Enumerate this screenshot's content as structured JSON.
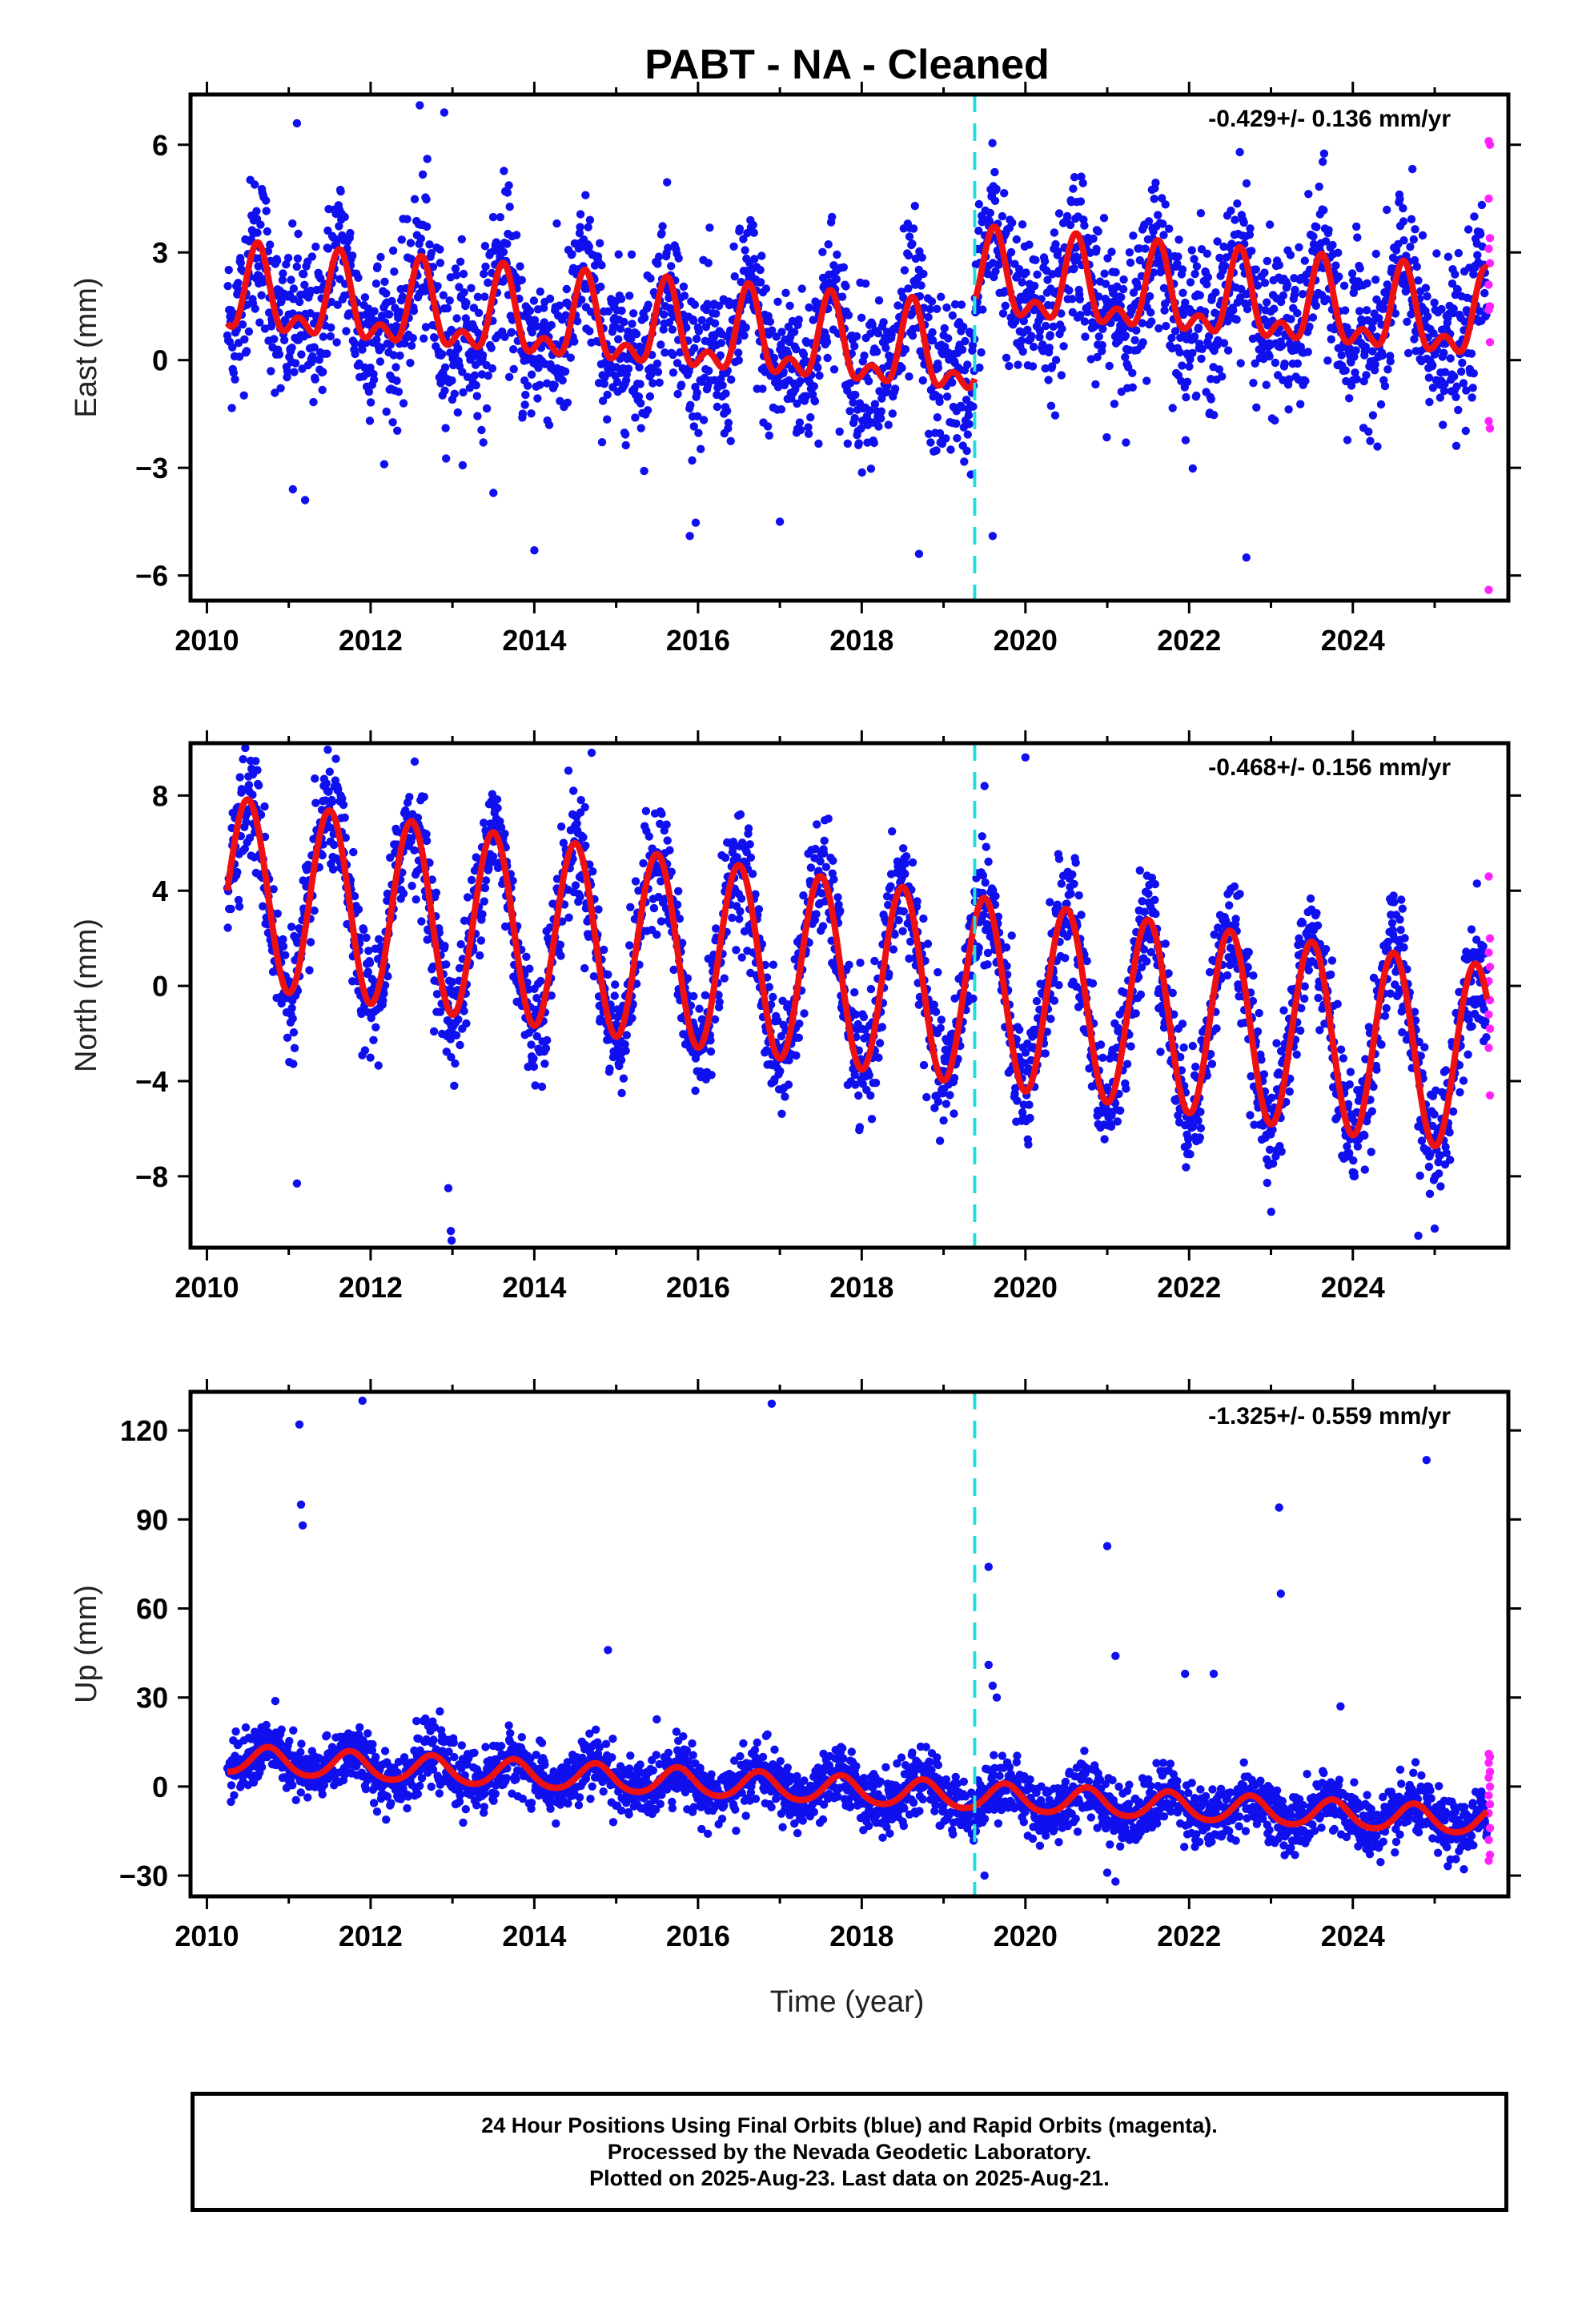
{
  "title": "PABT  - NA - Cleaned",
  "xlabel": "Time (year)",
  "colors": {
    "final_orbits": "#1010ee",
    "rapid_orbits": "#ff22ff",
    "model": "#ee1111",
    "equipment_change": "#22dddd"
  },
  "footer": {
    "line1": "24 Hour Positions Using Final Orbits (blue) and Rapid Orbits (magenta).",
    "line2": "Processed by the Nevada Geodetic Laboratory.",
    "line3": "Plotted on 2025-Aug-23. Last data on 2025-Aug-21."
  },
  "chart_data": [
    {
      "type": "scatter",
      "ylabel": "East (mm)",
      "velocity": "-0.429+/- 0.136 mm/yr",
      "xlim": [
        2009.8,
        2025.9
      ],
      "ylim": [
        -6.7,
        7.4
      ],
      "xticks": [
        2010,
        2012,
        2014,
        2016,
        2018,
        2020,
        2022,
        2024
      ],
      "yticks": [
        -6,
        -3,
        0,
        3,
        6
      ],
      "ytick_labels": [
        "−6",
        "−3",
        "0",
        "3",
        "6"
      ],
      "equipment_change_x": 2019.38,
      "data_start": 2010.25,
      "data_end": 2025.64,
      "model": {
        "series_name": "model",
        "offset": 1.75,
        "trend": -0.19,
        "step_at": 2019.38,
        "step": 2.15,
        "annual_amplitude": 1.0,
        "annual_peak": 0.62,
        "semiannual_amplitude": 0.6,
        "semiannual_peak": 0.62
      },
      "scatter_noise": 1.1,
      "rapid_values": [
        6.1,
        6.0,
        4.5,
        3.4,
        3.1,
        2.7,
        2.1,
        1.5,
        1.4,
        0.5,
        -1.7,
        -1.9,
        -6.4
      ],
      "outliers": [
        [
          2011.1,
          6.6
        ],
        [
          2012.6,
          7.1
        ],
        [
          2012.9,
          6.9
        ],
        [
          2011.05,
          -3.6
        ],
        [
          2011.2,
          -3.9
        ],
        [
          2013.5,
          -3.7
        ],
        [
          2014.0,
          -5.3
        ],
        [
          2015.9,
          -4.9
        ],
        [
          2017.0,
          -4.5
        ],
        [
          2018.7,
          -5.4
        ],
        [
          2019.6,
          -4.9
        ],
        [
          2022.7,
          -5.5
        ]
      ]
    },
    {
      "type": "scatter",
      "ylabel": "North (mm)",
      "velocity": "-0.468+/- 0.156 mm/yr",
      "xlim": [
        2009.8,
        2025.9
      ],
      "ylim": [
        -11.0,
        10.2
      ],
      "xticks": [
        2010,
        2012,
        2014,
        2016,
        2018,
        2020,
        2022,
        2024
      ],
      "yticks": [
        -8,
        -4,
        0,
        4,
        8
      ],
      "ytick_labels": [
        "−8",
        "−4",
        "0",
        "4",
        "8"
      ],
      "equipment_change_x": 2019.38,
      "data_start": 2010.25,
      "data_end": 2025.64,
      "model": {
        "series_name": "model",
        "offset": 4.0,
        "trend": -0.46,
        "step_at": 2019.38,
        "step": 0.0,
        "annual_amplitude": 3.95,
        "annual_peak": 0.5,
        "semiannual_amplitude": 0.0,
        "semiannual_peak": 0.5
      },
      "scatter_noise": 1.25,
      "rapid_values": [
        4.6,
        2.0,
        1.4,
        0.8,
        0.2,
        -0.6,
        -1.2,
        -1.8,
        -2.6,
        -4.6
      ],
      "outliers": [
        [
          2011.1,
          -8.3
        ],
        [
          2012.95,
          -8.5
        ],
        [
          2012.98,
          -10.3
        ],
        [
          2012.99,
          -10.7
        ],
        [
          2014.7,
          9.8
        ],
        [
          2019.5,
          8.4
        ],
        [
          2020.0,
          9.6
        ],
        [
          2024.8,
          -10.5
        ],
        [
          2025.0,
          -10.2
        ],
        [
          2011.5,
          9.0
        ]
      ]
    },
    {
      "type": "scatter",
      "ylabel": "Up (mm)",
      "velocity": "-1.325+/- 0.559 mm/yr",
      "xlim": [
        2009.8,
        2025.9
      ],
      "ylim": [
        -37,
        133
      ],
      "xticks": [
        2010,
        2012,
        2014,
        2016,
        2018,
        2020,
        2022,
        2024
      ],
      "yticks": [
        -30,
        0,
        30,
        60,
        90,
        120
      ],
      "ytick_labels": [
        "−30",
        "0",
        "30",
        "60",
        "90",
        "120"
      ],
      "equipment_change_x": 2019.38,
      "data_start": 2010.25,
      "data_end": 2025.64,
      "model": {
        "series_name": "model",
        "offset": 9.0,
        "trend": -1.36,
        "step_at": 2019.38,
        "step": 0.0,
        "annual_amplitude": 4.5,
        "annual_peak": 0.75,
        "semiannual_amplitude": 0.5,
        "semiannual_peak": 0.75
      },
      "scatter_noise": 5.0,
      "rapid_values": [
        11,
        10,
        8,
        5,
        3,
        0,
        -3,
        -6,
        -9,
        -14,
        -18,
        -23,
        -25
      ],
      "outliers": [
        [
          2011.13,
          122
        ],
        [
          2011.15,
          95
        ],
        [
          2011.17,
          88
        ],
        [
          2011.9,
          130
        ],
        [
          2014.9,
          46
        ],
        [
          2016.9,
          129
        ],
        [
          2019.55,
          74
        ],
        [
          2019.55,
          41
        ],
        [
          2019.6,
          34
        ],
        [
          2019.65,
          30
        ],
        [
          2021.0,
          81
        ],
        [
          2021.1,
          44
        ],
        [
          2021.95,
          38
        ],
        [
          2022.3,
          38
        ],
        [
          2023.1,
          94
        ],
        [
          2023.12,
          65
        ],
        [
          2023.85,
          27
        ],
        [
          2024.9,
          110
        ],
        [
          2021.0,
          -29
        ],
        [
          2021.1,
          -32
        ],
        [
          2019.5,
          -30
        ]
      ]
    }
  ]
}
